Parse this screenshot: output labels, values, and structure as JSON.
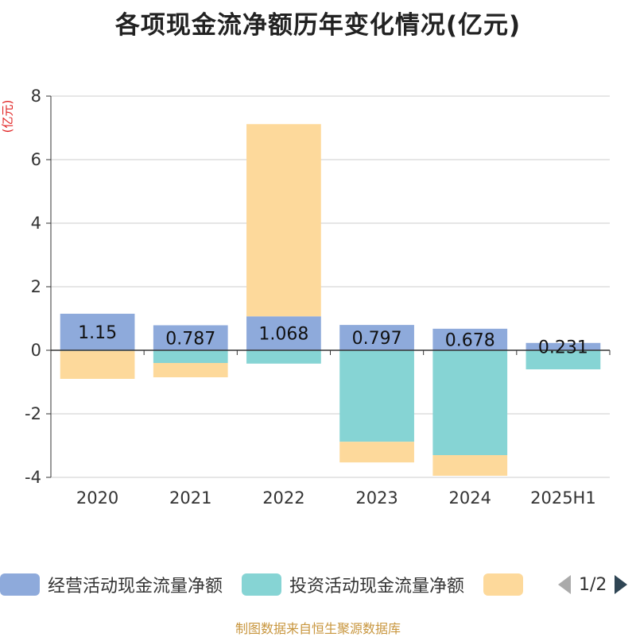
{
  "title": "各项现金流净额历年变化情况(亿元)",
  "unit_label": "(亿元)",
  "source": "制图数据来自恒生聚源数据库",
  "legend": {
    "items": [
      {
        "label": "经营活动现金流量净额",
        "color": "#8eaadb"
      },
      {
        "label": "投资活动现金流量净额",
        "color": "#86d4d4"
      },
      {
        "label": "",
        "color": "#fdd99b"
      }
    ],
    "pager": "1/2"
  },
  "chart_data": {
    "type": "bar",
    "stacked": true,
    "categories": [
      "2020",
      "2021",
      "2022",
      "2023",
      "2024",
      "2025H1"
    ],
    "series": [
      {
        "name": "经营活动现金流量净额",
        "color": "#8eaadb",
        "values": [
          1.15,
          0.787,
          1.068,
          0.797,
          0.678,
          0.231
        ],
        "labels": [
          "1.15",
          "0.787",
          "1.068",
          "0.797",
          "0.678",
          "0.231"
        ]
      },
      {
        "name": "投资活动现金流量净额",
        "color": "#86d4d4",
        "values": [
          -0.02,
          -0.4,
          -0.42,
          -2.88,
          -3.3,
          -0.6
        ]
      },
      {
        "color": "#fdd99b",
        "values": [
          -0.88,
          -0.45,
          6.05,
          -0.65,
          -0.65,
          0
        ]
      }
    ],
    "ylim": [
      -4,
      8
    ],
    "yticks": [
      -4,
      -2,
      0,
      2,
      4,
      6,
      8
    ],
    "grid": true,
    "legend_position": "bottom"
  }
}
